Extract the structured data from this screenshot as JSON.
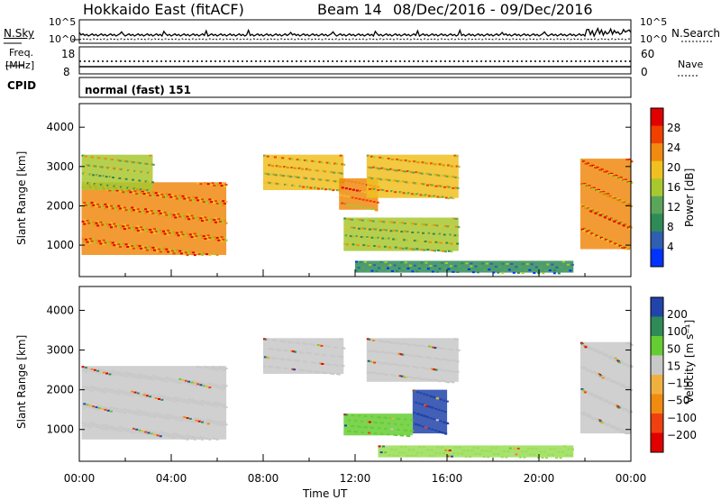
{
  "header": {
    "station": "Hokkaido East (fitACF)",
    "beam": "Beam 14",
    "date_range": "08/Dec/2016 - 09/Dec/2016"
  },
  "noise_panel": {
    "left_label": "N.Sky",
    "right_label": "N.Search",
    "left_ticks": [
      "10^5",
      "10^0"
    ],
    "right_ticks": [
      "10^5",
      "10^0"
    ]
  },
  "freq_panel": {
    "left_label_line1": "Freq.",
    "left_label_line2": "[MHz]",
    "left_ticks": [
      "18",
      "8"
    ],
    "right_label": "Nave",
    "right_ticks": [
      "60",
      "0"
    ]
  },
  "cpid": {
    "label": "CPID",
    "text": "normal (fast) 151"
  },
  "chart_data": [
    {
      "type": "heatmap",
      "name": "power",
      "ylabel": "Slant Range [km]",
      "xlabel": "Time UT",
      "xlim": [
        0,
        24
      ],
      "ylim": [
        200,
        4600
      ],
      "yticks": [
        "4000",
        "3000",
        "2000",
        "1000"
      ],
      "colorbar": {
        "label": "Power [dB]",
        "ticks": [
          "28",
          "24",
          "20",
          "16",
          "12",
          "8",
          "4"
        ],
        "range": [
          0,
          32
        ]
      },
      "regions": [
        {
          "t0": 0.1,
          "t1": 6.4,
          "r0": 750,
          "r1": 2600,
          "level": 24
        },
        {
          "t0": 0.1,
          "t1": 3.2,
          "r0": 2400,
          "r1": 3300,
          "level": 14
        },
        {
          "t0": 8.0,
          "t1": 11.5,
          "r0": 2400,
          "r1": 3300,
          "level": 20
        },
        {
          "t0": 11.3,
          "t1": 13.0,
          "r0": 1900,
          "r1": 2700,
          "level": 22
        },
        {
          "t0": 12.5,
          "t1": 16.5,
          "r0": 2200,
          "r1": 3300,
          "level": 18
        },
        {
          "t0": 11.5,
          "t1": 16.5,
          "r0": 850,
          "r1": 1700,
          "level": 14
        },
        {
          "t0": 12.0,
          "t1": 21.5,
          "r0": 300,
          "r1": 600,
          "level": 8
        },
        {
          "t0": 21.8,
          "t1": 24.0,
          "r0": 900,
          "r1": 3200,
          "level": 24
        }
      ]
    },
    {
      "type": "heatmap",
      "name": "velocity",
      "ylabel": "Slant Range [km]",
      "xlabel": "Time UT",
      "xlim": [
        0,
        24
      ],
      "ylim": [
        200,
        4600
      ],
      "yticks": [
        "4000",
        "3000",
        "2000",
        "1000"
      ],
      "xticks": [
        "00:00",
        "04:00",
        "08:00",
        "12:00",
        "16:00",
        "20:00",
        "00:00"
      ],
      "colorbar": {
        "label": "Velocity [m s⁻¹]",
        "ticks": [
          "200",
          "100",
          "50",
          "15",
          "−15",
          "−50",
          "−100",
          "−200"
        ]
      },
      "regions": [
        {
          "t0": 0.1,
          "t1": 6.4,
          "r0": 750,
          "r1": 2600,
          "level": "grey"
        },
        {
          "t0": 8.0,
          "t1": 11.5,
          "r0": 2400,
          "r1": 3300,
          "level": "grey"
        },
        {
          "t0": 12.5,
          "t1": 16.5,
          "r0": 2200,
          "r1": 3300,
          "level": "grey"
        },
        {
          "t0": 14.5,
          "t1": 16.0,
          "r0": 900,
          "r1": 2000,
          "level": "blue"
        },
        {
          "t0": 11.5,
          "t1": 14.5,
          "r0": 850,
          "r1": 1400,
          "level": "green"
        },
        {
          "t0": 13.0,
          "t1": 21.5,
          "r0": 300,
          "r1": 600,
          "level": "lightgreen"
        },
        {
          "t0": 21.8,
          "t1": 24.0,
          "r0": 900,
          "r1": 3200,
          "level": "grey"
        }
      ]
    }
  ],
  "colors": {
    "power_scale": [
      "#0033ff",
      "#2f5fb0",
      "#2e8b57",
      "#5aa55a",
      "#a8c830",
      "#f0c020",
      "#f08a10",
      "#f04000",
      "#e00000"
    ],
    "velocity_scale": [
      "#e00000",
      "#f04010",
      "#f08a10",
      "#f0b040",
      "#c8c8c8",
      "#66cc33",
      "#2e8b57",
      "#2244aa"
    ]
  }
}
